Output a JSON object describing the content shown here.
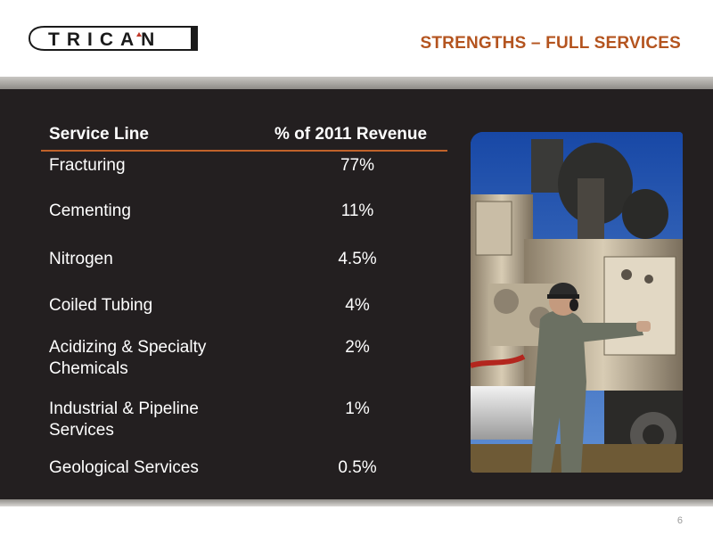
{
  "header": {
    "logo_text": "TRICAN",
    "title": "STRENGTHS – FULL SERVICES"
  },
  "table": {
    "headers": {
      "service_line": "Service Line",
      "revenue": "% of 2011 Revenue"
    },
    "rows": [
      {
        "service": "Fracturing",
        "revenue": "77%"
      },
      {
        "service": "Cementing",
        "revenue": "11%"
      },
      {
        "service": "Nitrogen",
        "revenue": "4.5%"
      },
      {
        "service": "Coiled Tubing",
        "revenue": "4%"
      },
      {
        "service": "Acidizing & Specialty Chemicals",
        "revenue": "2%"
      },
      {
        "service": "Industrial & Pipeline Services",
        "revenue": "1%"
      },
      {
        "service": "Geological Services",
        "revenue": "0.5%"
      }
    ]
  },
  "footer": {
    "page_number": "6"
  },
  "colors": {
    "title_orange": "#b4541f",
    "background_dark": "#231f20",
    "rule_orange": "#c0622a"
  }
}
